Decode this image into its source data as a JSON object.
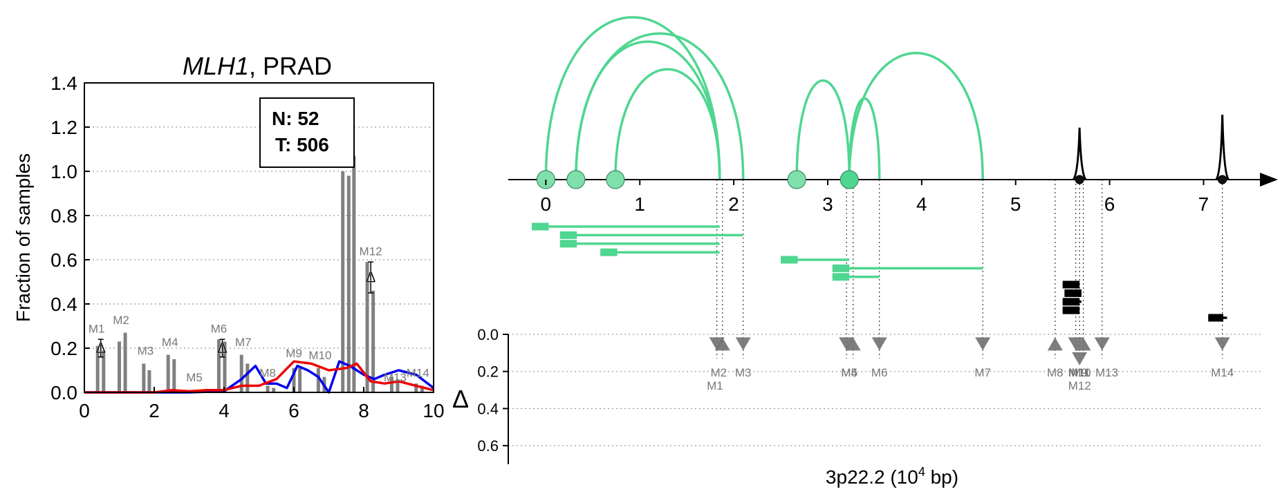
{
  "chart_data": [
    {
      "type": "bar",
      "title_italic": "MLH1",
      "title_rest": ", PRAD",
      "ylabel": "Fraction of samples",
      "xlabel": "",
      "xlim": [
        0,
        10
      ],
      "ylim": [
        0,
        1.4
      ],
      "xticks": [
        "0",
        "2",
        "4",
        "6",
        "8",
        "10"
      ],
      "yticks": [
        "0.0",
        "0.2",
        "0.4",
        "0.6",
        "0.8",
        "1.0",
        "1.2",
        "1.4"
      ],
      "grid": "horizontal dotted",
      "legend": {
        "line1": "N: 52",
        "line2": "T: 506",
        "position": "top-center"
      },
      "bar_color": "#808080",
      "bars": [
        {
          "x": 0.38,
          "value": 0.21
        },
        {
          "x": 0.55,
          "value": 0.19
        },
        {
          "x": 1.0,
          "value": 0.23
        },
        {
          "x": 1.17,
          "value": 0.27
        },
        {
          "x": 1.7,
          "value": 0.13
        },
        {
          "x": 1.86,
          "value": 0.1
        },
        {
          "x": 2.4,
          "value": 0.17
        },
        {
          "x": 2.57,
          "value": 0.15
        },
        {
          "x": 3.15,
          "value": 0.005
        },
        {
          "x": 3.3,
          "value": 0.005
        },
        {
          "x": 3.85,
          "value": 0.24
        },
        {
          "x": 4.02,
          "value": 0.23
        },
        {
          "x": 4.5,
          "value": 0.17
        },
        {
          "x": 4.67,
          "value": 0.13
        },
        {
          "x": 5.25,
          "value": 0.03
        },
        {
          "x": 5.42,
          "value": 0.02
        },
        {
          "x": 6.0,
          "value": 0.11
        },
        {
          "x": 6.17,
          "value": 0.11
        },
        {
          "x": 6.7,
          "value": 0.11
        },
        {
          "x": 6.87,
          "value": 0.07
        },
        {
          "x": 7.4,
          "value": 1.0
        },
        {
          "x": 7.57,
          "value": 0.98
        },
        {
          "x": 7.72,
          "value": 1.07
        },
        {
          "x": 8.1,
          "value": 0.59
        },
        {
          "x": 8.27,
          "value": 0.46
        },
        {
          "x": 8.8,
          "value": 0.07
        },
        {
          "x": 8.97,
          "value": 0.06
        },
        {
          "x": 9.5,
          "value": 0.04
        },
        {
          "x": 9.67,
          "value": 0.03
        }
      ],
      "bar_labels": [
        {
          "text": "M1",
          "x": 0.35,
          "y": 0.27
        },
        {
          "text": "M2",
          "x": 1.05,
          "y": 0.31
        },
        {
          "text": "M3",
          "x": 1.75,
          "y": 0.17
        },
        {
          "text": "M4",
          "x": 2.45,
          "y": 0.21
        },
        {
          "text": "M5",
          "x": 3.15,
          "y": 0.05
        },
        {
          "text": "M6",
          "x": 3.85,
          "y": 0.27
        },
        {
          "text": "M7",
          "x": 4.55,
          "y": 0.21
        },
        {
          "text": "M8",
          "x": 5.25,
          "y": 0.07
        },
        {
          "text": "M9",
          "x": 6.0,
          "y": 0.16
        },
        {
          "text": "M10",
          "x": 6.75,
          "y": 0.15
        },
        {
          "text": "M12",
          "x": 8.2,
          "y": 0.62
        },
        {
          "text": "M13",
          "x": 8.9,
          "y": 0.05
        },
        {
          "text": "M14",
          "x": 9.55,
          "y": 0.07
        }
      ],
      "delta_markers": [
        {
          "x": 0.47,
          "y": 0.2,
          "err": 0.04
        },
        {
          "x": 3.95,
          "y": 0.2,
          "err": 0.04
        },
        {
          "x": 8.2,
          "y": 0.52,
          "err": 0.07
        }
      ],
      "delta_symbol": "Δ",
      "series": [
        {
          "color": "#0000ee",
          "x": [
            0,
            1,
            2,
            3,
            4,
            4.5,
            4.9,
            5.2,
            5.5,
            5.8,
            6.1,
            6.4,
            6.7,
            7.0,
            7.3,
            7.6,
            8.0,
            8.3,
            8.6,
            9.0,
            9.5,
            10
          ],
          "y": [
            0,
            0,
            0,
            0,
            0.005,
            0.06,
            0.12,
            0.04,
            0.04,
            0.02,
            0.12,
            0.1,
            0.07,
            0,
            0.14,
            0.12,
            0.08,
            0.06,
            0.08,
            0.1,
            0.08,
            0.02
          ]
        },
        {
          "color": "#ee0000",
          "x": [
            0,
            1,
            2,
            2.5,
            3,
            3.5,
            4,
            4.5,
            5,
            5.5,
            6,
            6.5,
            7,
            7.5,
            7.8,
            8.2,
            8.6,
            9,
            9.5,
            10
          ],
          "y": [
            0,
            0,
            0,
            0.01,
            0.005,
            0.01,
            0.01,
            0.03,
            0.03,
            0.06,
            0.14,
            0.13,
            0.1,
            0.11,
            0.13,
            0.05,
            0.04,
            0.05,
            0.03,
            0.01
          ]
        }
      ]
    },
    {
      "type": "arc-diagram",
      "xlabel_base": "3p22.2 (10",
      "xlabel_sup": "4",
      "xlabel_tail": " bp)",
      "xlim": [
        -0.4,
        7.6
      ],
      "xticks": [
        "0",
        "1",
        "2",
        "3",
        "4",
        "5",
        "6",
        "7"
      ],
      "arc_color": "#4fd690",
      "circles": [
        {
          "x": 0.0,
          "color": "#7fe0ab"
        },
        {
          "x": 0.32,
          "color": "#7fe0ab"
        },
        {
          "x": 0.74,
          "color": "#7fe0ab"
        },
        {
          "x": 2.67,
          "color": "#7fe0ab"
        },
        {
          "x": 3.23,
          "color": "#4fd690"
        },
        {
          "x": 5.68,
          "color": "#111111"
        },
        {
          "x": 7.2,
          "color": "#111111"
        }
      ],
      "arcs": [
        {
          "from": 0.0,
          "to": 1.85,
          "h": 1.0
        },
        {
          "from": 0.32,
          "to": 2.1,
          "h": 0.9
        },
        {
          "from": 0.32,
          "to": 1.85,
          "h": 0.85
        },
        {
          "from": 0.74,
          "to": 1.85,
          "h": 0.68
        },
        {
          "from": 2.67,
          "to": 3.23,
          "h": 0.61
        },
        {
          "from": 3.23,
          "to": 3.55,
          "h": 0.5
        },
        {
          "from": 3.23,
          "to": 4.65,
          "h": 0.78
        }
      ],
      "spikes": [
        {
          "x": 5.68,
          "h": 0.32
        },
        {
          "x": 7.2,
          "h": 0.4
        }
      ],
      "intervals": [
        {
          "start": -0.15,
          "end": 1.85,
          "row": 0,
          "color": "#4fd690",
          "head": 0.18
        },
        {
          "start": 0.15,
          "end": 2.1,
          "row": 1,
          "color": "#4fd690",
          "head": 0.18
        },
        {
          "start": 0.15,
          "end": 1.85,
          "row": 2,
          "color": "#4fd690",
          "head": 0.18
        },
        {
          "start": 0.58,
          "end": 1.85,
          "row": 3,
          "color": "#4fd690",
          "head": 0.18
        },
        {
          "start": 2.5,
          "end": 3.23,
          "row": 4,
          "color": "#4fd690",
          "head": 0.18
        },
        {
          "start": 3.05,
          "end": 4.65,
          "row": 5,
          "color": "#4fd690",
          "head": 0.18
        },
        {
          "start": 3.05,
          "end": 3.55,
          "row": 6,
          "color": "#4fd690",
          "head": 0.18
        },
        {
          "start": 5.5,
          "end": 5.68,
          "row": 7,
          "color": "#000000",
          "head": 0.18
        },
        {
          "start": 5.52,
          "end": 5.7,
          "row": 8,
          "color": "#000000",
          "head": 0.18
        },
        {
          "start": 5.5,
          "end": 5.7,
          "row": 9,
          "color": "#000000",
          "head": 0.18
        },
        {
          "start": 5.5,
          "end": 5.68,
          "row": 10,
          "color": "#000000",
          "head": 0.18
        },
        {
          "start": 7.05,
          "end": 7.25,
          "row": 11,
          "color": "#000000",
          "head": 0.16
        }
      ],
      "ylabel_delta": "Δ",
      "delta_yticks": [
        "0.0",
        "0.2",
        "0.4",
        "0.6"
      ],
      "delta_ylim": [
        0,
        0.7
      ],
      "triangle_color": "#707070",
      "triangles": [
        {
          "x": 1.82,
          "dir": "down",
          "y": 0.02
        },
        {
          "x": 1.88,
          "dir": "up",
          "y": 0.02
        },
        {
          "x": 2.1,
          "dir": "down",
          "y": 0.02
        },
        {
          "x": 3.2,
          "dir": "down",
          "y": 0.02
        },
        {
          "x": 3.27,
          "dir": "up",
          "y": 0.02
        },
        {
          "x": 3.55,
          "dir": "down",
          "y": 0.02
        },
        {
          "x": 4.65,
          "dir": "down",
          "y": 0.02
        },
        {
          "x": 5.42,
          "dir": "up",
          "y": 0.02
        },
        {
          "x": 5.64,
          "dir": "down",
          "y": 0.02
        },
        {
          "x": 5.72,
          "dir": "up",
          "y": 0.02
        },
        {
          "x": 5.68,
          "dir": "down",
          "y": 0.1
        },
        {
          "x": 5.92,
          "dir": "down",
          "y": 0.02
        },
        {
          "x": 7.2,
          "dir": "down",
          "y": 0.02
        }
      ],
      "m_labels": [
        {
          "text": "M1",
          "x": 1.8,
          "row": 1
        },
        {
          "text": "M2",
          "x": 1.84,
          "row": 0
        },
        {
          "text": "M3",
          "x": 2.1,
          "row": 0
        },
        {
          "text": "M4",
          "x": 3.23,
          "row": 0
        },
        {
          "text": "M5",
          "x": 3.23,
          "row": 0
        },
        {
          "text": "M6",
          "x": 3.55,
          "row": 0
        },
        {
          "text": "M7",
          "x": 4.65,
          "row": 0
        },
        {
          "text": "M8",
          "x": 5.42,
          "row": 0
        },
        {
          "text": "M9",
          "x": 5.68,
          "row": 0
        },
        {
          "text": "M10",
          "x": 5.68,
          "row": 0
        },
        {
          "text": "M11",
          "x": 5.68,
          "row": 0
        },
        {
          "text": "M12",
          "x": 5.68,
          "row": 1
        },
        {
          "text": "M13",
          "x": 5.97,
          "row": 0
        },
        {
          "text": "M14",
          "x": 7.2,
          "row": 0
        }
      ]
    }
  ]
}
